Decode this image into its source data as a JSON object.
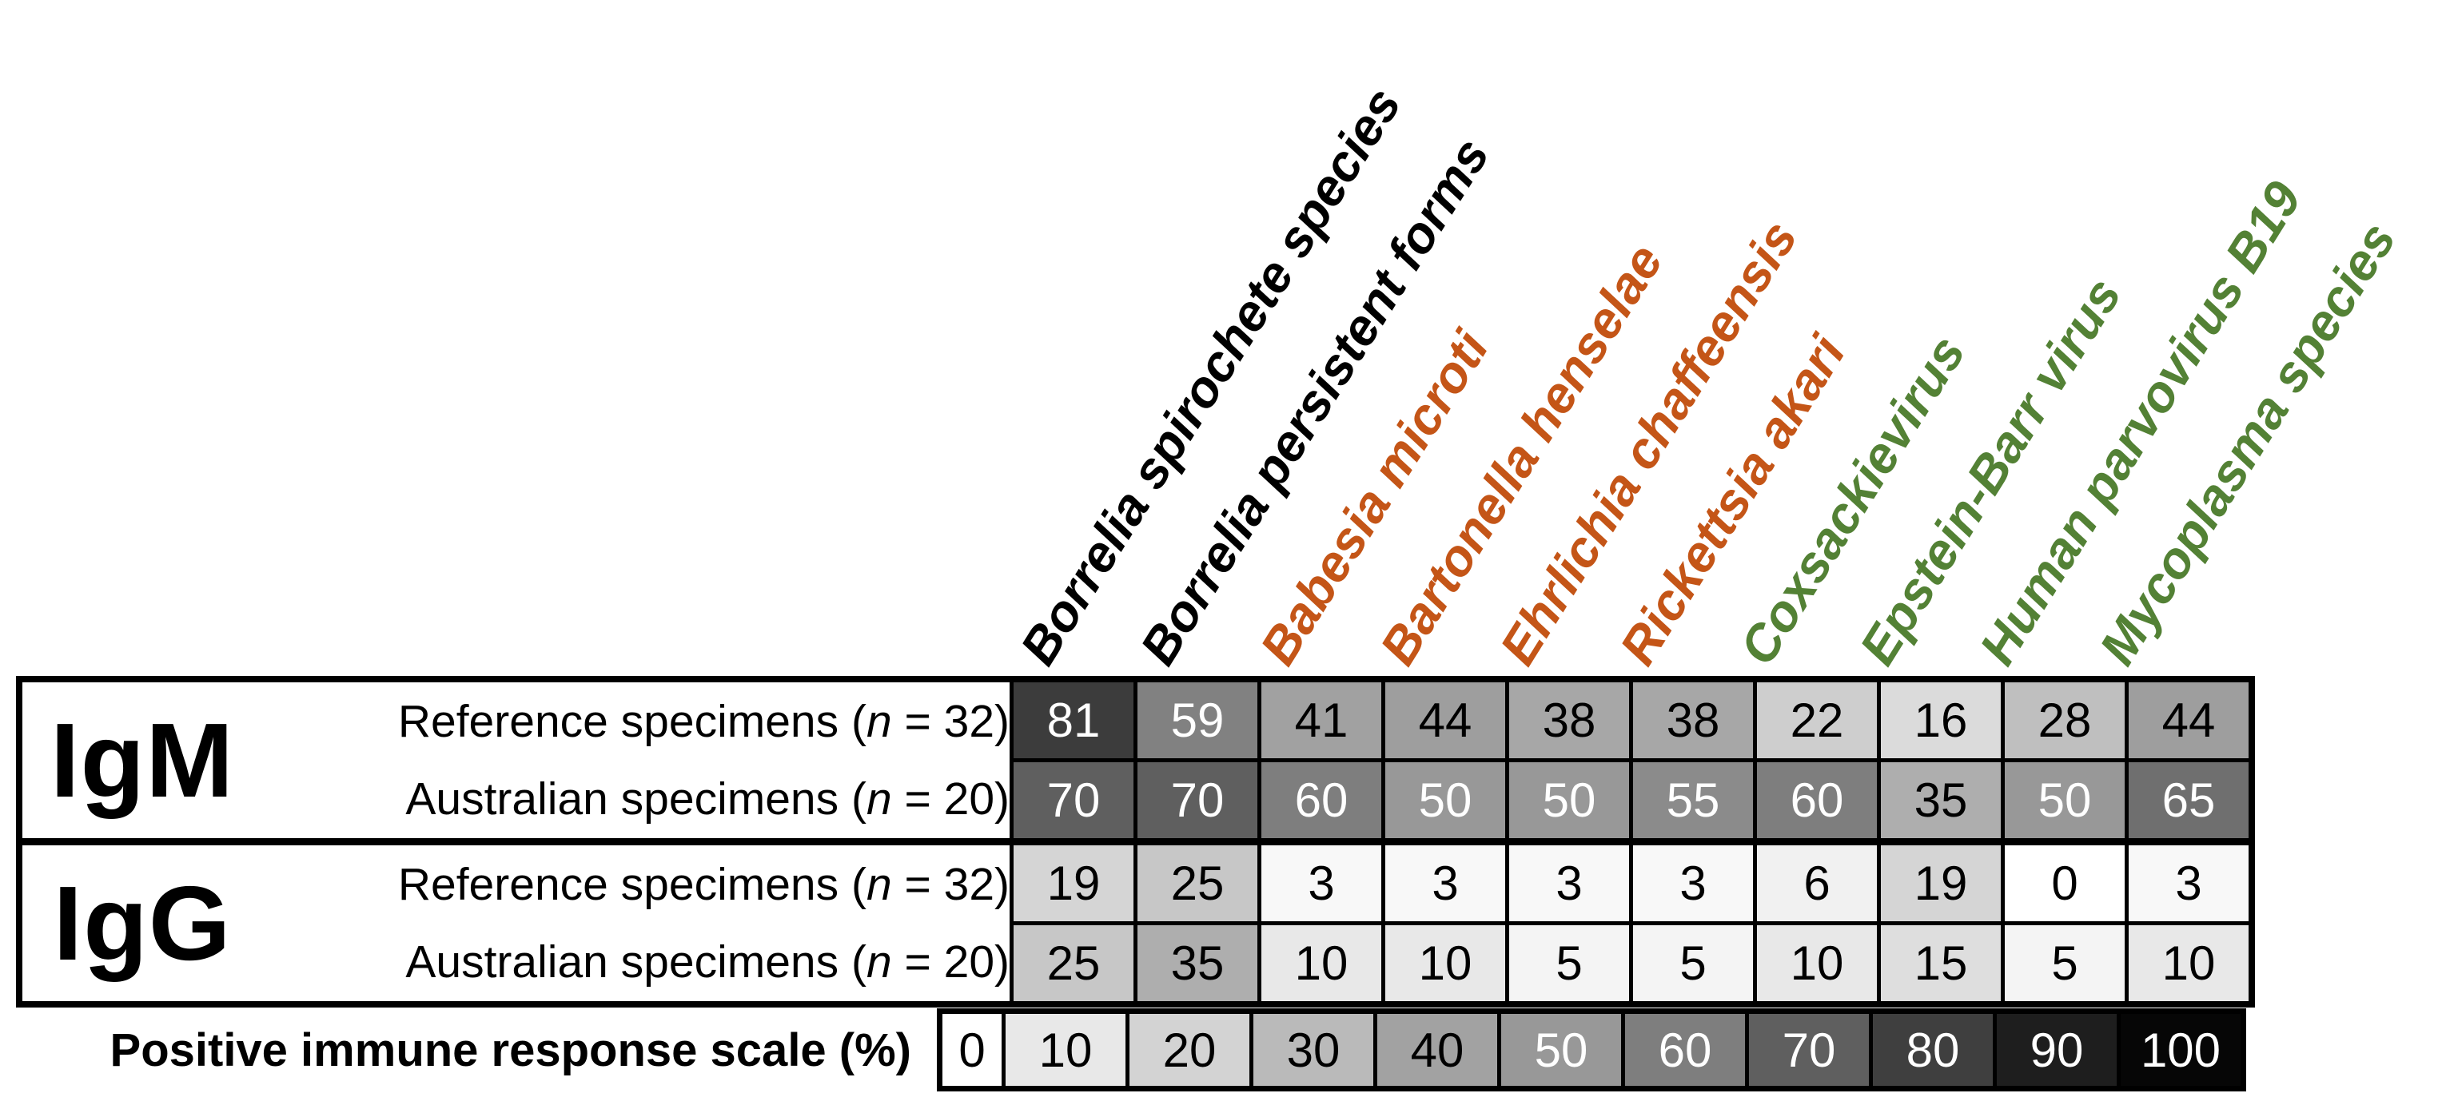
{
  "palette": {
    "black": "#000000",
    "orange": "#C45517",
    "green": "#538135",
    "white_text_min": 50,
    "gray_anchors": [
      255,
      232,
      211,
      186,
      162,
      152,
      126,
      95,
      63,
      30,
      6
    ]
  },
  "columns": [
    {
      "label": "Borrelia spirochete species",
      "color": "#000000"
    },
    {
      "label": "Borrelia persistent forms",
      "color": "#000000"
    },
    {
      "label": "Babesia microti",
      "color": "#C45517"
    },
    {
      "label": "Bartonella henselae",
      "color": "#C45517"
    },
    {
      "label": "Ehrlichia chaffeensis",
      "color": "#C45517"
    },
    {
      "label": "Rickettsia akari",
      "color": "#C45517"
    },
    {
      "label": "Coxsackievirus",
      "color": "#538135"
    },
    {
      "label": "Epstein-Barr virus",
      "color": "#538135"
    },
    {
      "label": "Human parvovirus B19",
      "color": "#538135"
    },
    {
      "label": "Mycoplasma species",
      "color": "#538135"
    }
  ],
  "row_groups": [
    {
      "label": "IgM",
      "rows": [
        {
          "label_parts": [
            "Reference specimens (",
            "n",
            " = 32)"
          ],
          "values": [
            81,
            59,
            41,
            44,
            38,
            38,
            22,
            16,
            28,
            44
          ]
        },
        {
          "label_parts": [
            "Australian specimens (",
            "n",
            " = 20)"
          ],
          "values": [
            70,
            70,
            60,
            50,
            50,
            55,
            60,
            35,
            50,
            65
          ]
        }
      ]
    },
    {
      "label": "IgG",
      "rows": [
        {
          "label_parts": [
            "Reference specimens (",
            "n",
            " = 32)"
          ],
          "values": [
            19,
            25,
            3,
            3,
            3,
            3,
            6,
            19,
            0,
            3
          ]
        },
        {
          "label_parts": [
            "Australian specimens (",
            "n",
            " = 20)"
          ],
          "values": [
            25,
            35,
            10,
            10,
            5,
            5,
            10,
            15,
            5,
            10
          ]
        }
      ]
    }
  ],
  "scale": {
    "label": "Positive immune response scale (%)",
    "ticks": [
      0,
      10,
      20,
      30,
      40,
      50,
      60,
      70,
      80,
      90,
      100
    ]
  },
  "chart_data": {
    "type": "heatmap",
    "categories": [
      "Borrelia spirochete species",
      "Borrelia persistent forms",
      "Babesia microti",
      "Bartonella henselae",
      "Ehrlichia chaffeensis",
      "Rickettsia akari",
      "Coxsackievirus",
      "Epstein-Barr virus",
      "Human parvovirus B19",
      "Mycoplasma species"
    ],
    "category_groups": {
      "black": [
        "Borrelia spirochete species",
        "Borrelia persistent forms"
      ],
      "orange": [
        "Babesia microti",
        "Bartonella henselae",
        "Ehrlichia chaffeensis",
        "Rickettsia akari"
      ],
      "green": [
        "Coxsackievirus",
        "Epstein-Barr virus",
        "Human parvovirus B19",
        "Mycoplasma species"
      ]
    },
    "series": [
      {
        "name": "IgM Reference specimens (n = 32)",
        "values": [
          81,
          59,
          41,
          44,
          38,
          38,
          22,
          16,
          28,
          44
        ]
      },
      {
        "name": "IgM Australian specimens (n = 20)",
        "values": [
          70,
          70,
          60,
          50,
          50,
          55,
          60,
          35,
          50,
          65
        ]
      },
      {
        "name": "IgG Reference specimens (n = 32)",
        "values": [
          19,
          25,
          3,
          3,
          3,
          3,
          6,
          19,
          0,
          3
        ]
      },
      {
        "name": "IgG Australian specimens (n = 20)",
        "values": [
          25,
          35,
          10,
          10,
          5,
          5,
          10,
          15,
          5,
          10
        ]
      }
    ],
    "colorbar": {
      "label": "Positive immune response scale (%)",
      "ticks": [
        0,
        10,
        20,
        30,
        40,
        50,
        60,
        70,
        80,
        90,
        100
      ],
      "range": [
        0,
        100
      ],
      "low_color": "#FFFFFF",
      "high_color": "#000000"
    }
  }
}
